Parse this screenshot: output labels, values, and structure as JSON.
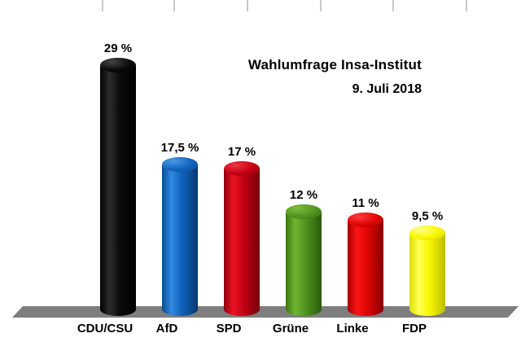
{
  "background_color": "#ffffff",
  "spreadsheet_gridline_color": "#c8c8c8",
  "chart_data": {
    "type": "bar",
    "style": "3d-cylinder",
    "title": "Wahlumfrage Insa-Institut",
    "subtitle": "9. Juli 2018",
    "xlabel": "",
    "ylabel": "",
    "ylim": [
      0,
      30
    ],
    "grid": false,
    "legend": false,
    "floor_color": "#7e7e7e",
    "categories": [
      "CDU/CSU",
      "AfD",
      "SPD",
      "Grüne",
      "Linke",
      "FDP"
    ],
    "values": [
      29,
      17.5,
      17,
      12,
      11,
      9.5
    ],
    "value_labels": [
      "29 %",
      "17,5 %",
      "17 %",
      "12 %",
      "11 %",
      "9,5 %"
    ],
    "bar_colors": [
      {
        "name": "black",
        "base": "#000000",
        "edge_left": "#000000",
        "highlight": "#2e2e2e",
        "mid": "#0a0a0a",
        "edge_right": "#000000",
        "top_highlight": "#454545",
        "top_dark": "#000000"
      },
      {
        "name": "blue",
        "base": "#1063bd",
        "edge_left": "#0a4c92",
        "highlight": "#3189e0",
        "mid": "#1063bd",
        "edge_right": "#06386e",
        "top_highlight": "#4a9ae6",
        "top_dark": "#0a4e96"
      },
      {
        "name": "dark-red",
        "base": "#c30013",
        "edge_left": "#8c000e",
        "highlight": "#ea1322",
        "mid": "#c30013",
        "edge_right": "#75000a",
        "top_highlight": "#ee3342",
        "top_dark": "#8c000e"
      },
      {
        "name": "green",
        "base": "#4f9420",
        "edge_left": "#39780f",
        "highlight": "#6fb52f",
        "mid": "#4f9420",
        "edge_right": "#2a5c0a",
        "top_highlight": "#7cbd3e",
        "top_dark": "#336c0c"
      },
      {
        "name": "bright-red",
        "base": "#de0404",
        "edge_left": "#a80000",
        "highlight": "#fb1515",
        "mid": "#de0404",
        "edge_right": "#8a0000",
        "top_highlight": "#ff3b3b",
        "top_dark": "#9e0000"
      },
      {
        "name": "yellow",
        "base": "#f8f800",
        "edge_left": "#dede00",
        "highlight": "#ffff55",
        "mid": "#f8f800",
        "edge_right": "#bcbc00",
        "top_highlight": "#ffff88",
        "top_dark": "#d0d000"
      }
    ]
  }
}
